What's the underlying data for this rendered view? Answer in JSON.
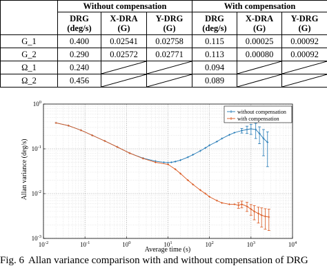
{
  "table": {
    "group_without": "Without compensation",
    "group_with": "With compensation",
    "col_headers": [
      {
        "name": "DRG",
        "unit": "(deg/s)"
      },
      {
        "name": "X-DRA",
        "unit": "(G)"
      },
      {
        "name": "Y-DRG",
        "unit": "(G)"
      },
      {
        "name": "DRG",
        "unit": "(deg/s)"
      },
      {
        "name": "X-DRA",
        "unit": "(G)"
      },
      {
        "name": "Y-DRG",
        "unit": "(G)"
      }
    ],
    "rows": [
      {
        "label": "G_1",
        "cells": [
          "0.400",
          "0.02541",
          "0.02758",
          "0.115",
          "0.00025",
          "0.00092"
        ]
      },
      {
        "label": "G_2",
        "cells": [
          "0.290",
          "0.02572",
          "0.02771",
          "0.113",
          "0.00080",
          "0.00092"
        ]
      },
      {
        "label": "Ω_1",
        "cells": [
          "0.240",
          "",
          "",
          "0.094",
          "",
          ""
        ]
      },
      {
        "label": "Ω_2",
        "cells": [
          "0.456",
          "",
          "",
          "0.089",
          "",
          ""
        ]
      }
    ]
  },
  "chart_data": {
    "type": "line",
    "x_scale": "log",
    "y_scale": "log",
    "xlim": [
      0.01,
      10000
    ],
    "ylim": [
      0.001,
      1
    ],
    "xlabel": "Average time (s)",
    "ylabel": "Allan variance (deg/s)",
    "x_ticks": [
      {
        "value": 0.01,
        "label": "10^-2"
      },
      {
        "value": 0.1,
        "label": "10^-1"
      },
      {
        "value": 1,
        "label": "10^0"
      },
      {
        "value": 10,
        "label": "10^1"
      },
      {
        "value": 100,
        "label": "10^2"
      },
      {
        "value": 1000,
        "label": "10^3"
      },
      {
        "value": 10000,
        "label": "10^4"
      }
    ],
    "y_ticks": [
      {
        "value": 0.001,
        "label": "10^-3"
      },
      {
        "value": 0.01,
        "label": "10^-2"
      },
      {
        "value": 0.1,
        "label": "10^-1"
      },
      {
        "value": 1,
        "label": "10^0"
      }
    ],
    "grid": true,
    "legend_position": "top-right",
    "series": [
      {
        "name": "without compensation",
        "color": "#1f77b4",
        "x": [
          0.02,
          0.04,
          0.08,
          0.15,
          0.3,
          0.6,
          1.2,
          2.5,
          5,
          8,
          10,
          12,
          15,
          20,
          30,
          40,
          60,
          80,
          100,
          150,
          200,
          300,
          400,
          600,
          800,
          1000,
          1300,
          1600,
          2000,
          2500
        ],
        "y": [
          0.38,
          0.33,
          0.26,
          0.2,
          0.15,
          0.11,
          0.08,
          0.062,
          0.053,
          0.05,
          0.049,
          0.05,
          0.052,
          0.056,
          0.065,
          0.074,
          0.09,
          0.105,
          0.12,
          0.145,
          0.17,
          0.205,
          0.23,
          0.255,
          0.27,
          0.28,
          0.27,
          0.22,
          0.17,
          0.14
        ],
        "err": [
          0,
          0,
          0,
          0,
          0,
          0,
          0,
          0,
          0,
          0,
          0,
          0,
          0,
          0,
          0,
          0,
          0,
          0,
          0,
          0,
          0,
          0,
          0,
          0.03,
          0.05,
          0.07,
          0.1,
          0.09,
          0.1,
          0.1
        ]
      },
      {
        "name": "with compensation",
        "color": "#d9541a",
        "x": [
          0.02,
          0.04,
          0.08,
          0.15,
          0.3,
          0.6,
          1.2,
          2.5,
          5,
          10,
          15,
          20,
          30,
          40,
          60,
          80,
          100,
          150,
          200,
          300,
          400,
          500,
          600,
          800,
          1000,
          1200,
          1500,
          1800,
          2200,
          2700
        ],
        "y": [
          0.38,
          0.33,
          0.26,
          0.2,
          0.15,
          0.11,
          0.08,
          0.061,
          0.05,
          0.045,
          0.035,
          0.028,
          0.02,
          0.016,
          0.012,
          0.01,
          0.0085,
          0.007,
          0.0062,
          0.0058,
          0.0058,
          0.0055,
          0.0058,
          0.0052,
          0.0045,
          0.004,
          0.0036,
          0.0033,
          0.0031,
          0.003
        ],
        "err": [
          0,
          0,
          0,
          0,
          0,
          0,
          0,
          0,
          0,
          0,
          0,
          0,
          0,
          0,
          0,
          0,
          0,
          0,
          0,
          0,
          0,
          0.0008,
          0.001,
          0.0012,
          0.0012,
          0.0014,
          0.0014,
          0.0015,
          0.0015,
          0.0015
        ]
      }
    ]
  },
  "caption": {
    "label": "Fig. 6",
    "text": "Allan variance comparison with and without compensation of DRG"
  }
}
